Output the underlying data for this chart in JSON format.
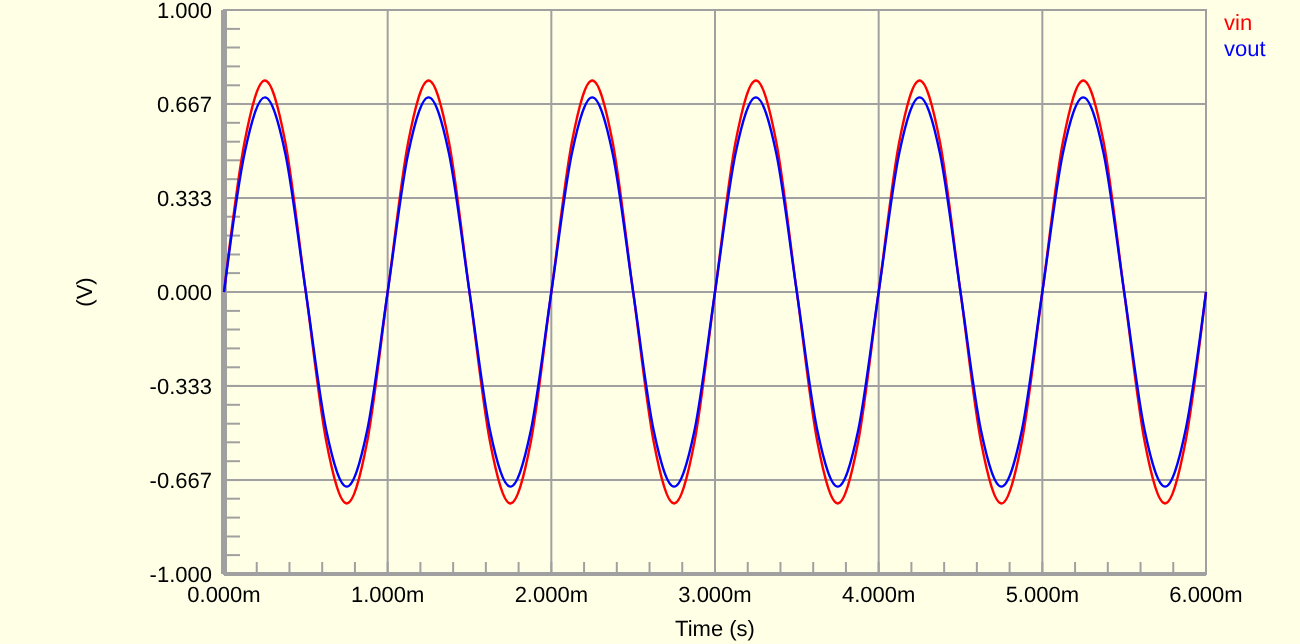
{
  "chart_data": {
    "type": "line",
    "xlabel": "Time (s)",
    "ylabel": "(V)",
    "xlim": [
      0,
      6
    ],
    "ylim": [
      -1,
      1
    ],
    "xticks": [
      {
        "value": 0,
        "label": "0.000m"
      },
      {
        "value": 0.2,
        "label": null
      },
      {
        "value": 0.4,
        "label": null
      },
      {
        "value": 0.6,
        "label": null
      },
      {
        "value": 0.8,
        "label": null
      },
      {
        "value": 1,
        "label": "1.000m"
      },
      {
        "value": 1.2,
        "label": null
      },
      {
        "value": 1.4,
        "label": null
      },
      {
        "value": 1.6,
        "label": null
      },
      {
        "value": 1.8,
        "label": null
      },
      {
        "value": 2,
        "label": "2.000m"
      },
      {
        "value": 2.2,
        "label": null
      },
      {
        "value": 2.4,
        "label": null
      },
      {
        "value": 2.6,
        "label": null
      },
      {
        "value": 2.8,
        "label": null
      },
      {
        "value": 3,
        "label": "3.000m"
      },
      {
        "value": 3.2,
        "label": null
      },
      {
        "value": 3.4,
        "label": null
      },
      {
        "value": 3.6,
        "label": null
      },
      {
        "value": 3.8,
        "label": null
      },
      {
        "value": 4,
        "label": "4.000m"
      },
      {
        "value": 4.2,
        "label": null
      },
      {
        "value": 4.4,
        "label": null
      },
      {
        "value": 4.6,
        "label": null
      },
      {
        "value": 4.8,
        "label": null
      },
      {
        "value": 5,
        "label": "5.000m"
      },
      {
        "value": 5.2,
        "label": null
      },
      {
        "value": 5.4,
        "label": null
      },
      {
        "value": 5.6,
        "label": null
      },
      {
        "value": 5.8,
        "label": null
      },
      {
        "value": 6,
        "label": "6.000m"
      }
    ],
    "yticks": [
      {
        "value": -1,
        "label": "-1.000"
      },
      {
        "value": -0.933,
        "label": null
      },
      {
        "value": -0.867,
        "label": null
      },
      {
        "value": -0.8,
        "label": null
      },
      {
        "value": -0.733,
        "label": null
      },
      {
        "value": -0.667,
        "label": "-0.667"
      },
      {
        "value": -0.6,
        "label": null
      },
      {
        "value": -0.533,
        "label": null
      },
      {
        "value": -0.467,
        "label": null
      },
      {
        "value": -0.4,
        "label": null
      },
      {
        "value": -0.333,
        "label": "-0.333"
      },
      {
        "value": -0.267,
        "label": null
      },
      {
        "value": -0.2,
        "label": null
      },
      {
        "value": -0.133,
        "label": null
      },
      {
        "value": -0.067,
        "label": null
      },
      {
        "value": 0,
        "label": "0.000"
      },
      {
        "value": 0.067,
        "label": null
      },
      {
        "value": 0.133,
        "label": null
      },
      {
        "value": 0.2,
        "label": null
      },
      {
        "value": 0.267,
        "label": null
      },
      {
        "value": 0.333,
        "label": "0.333"
      },
      {
        "value": 0.4,
        "label": null
      },
      {
        "value": 0.467,
        "label": null
      },
      {
        "value": 0.533,
        "label": null
      },
      {
        "value": 0.6,
        "label": null
      },
      {
        "value": 0.667,
        "label": "0.667"
      },
      {
        "value": 0.733,
        "label": null
      },
      {
        "value": 0.8,
        "label": null
      },
      {
        "value": 0.867,
        "label": null
      },
      {
        "value": 0.933,
        "label": null
      },
      {
        "value": 1,
        "label": "1.000"
      }
    ],
    "grid": true,
    "legend": "top right",
    "marker": "none",
    "line_style": "solid",
    "x": [
      0,
      0.125,
      0.25,
      0.375,
      0.5,
      0.625,
      0.75,
      0.875,
      1,
      1.125,
      1.25,
      1.375,
      1.5,
      1.625,
      1.75,
      1.875,
      2,
      2.125,
      2.25,
      2.375,
      2.5,
      2.625,
      2.75,
      2.875,
      3,
      3.125,
      3.25,
      3.375,
      3.5,
      3.625,
      3.75,
      3.875,
      4,
      4.125,
      4.25,
      4.375,
      4.5,
      4.625,
      4.75,
      4.875,
      5,
      5.125,
      5.25,
      5.375,
      5.5,
      5.625,
      5.75,
      5.875,
      6
    ],
    "series": [
      {
        "name": "vin",
        "color": "#ff0000",
        "values": [
          0,
          0.53,
          0.75,
          0.53,
          0,
          -0.53,
          -0.75,
          -0.53,
          0,
          0.53,
          0.75,
          0.53,
          0,
          -0.53,
          -0.75,
          -0.53,
          0,
          0.53,
          0.75,
          0.53,
          0,
          -0.53,
          -0.75,
          -0.53,
          0,
          0.53,
          0.75,
          0.53,
          0,
          -0.53,
          -0.75,
          -0.53,
          0,
          0.53,
          0.75,
          0.53,
          0,
          -0.53,
          -0.75,
          -0.53,
          0,
          0.53,
          0.75,
          0.53,
          0,
          -0.53,
          -0.75,
          -0.53,
          0
        ]
      },
      {
        "name": "vout",
        "color": "#0000ff",
        "values": [
          0,
          0.49,
          0.69,
          0.49,
          0,
          -0.49,
          -0.69,
          -0.49,
          0,
          0.49,
          0.69,
          0.49,
          0,
          -0.49,
          -0.69,
          -0.49,
          0,
          0.49,
          0.69,
          0.49,
          0,
          -0.49,
          -0.69,
          -0.49,
          0,
          0.49,
          0.69,
          0.49,
          0,
          -0.49,
          -0.69,
          -0.49,
          0,
          0.49,
          0.69,
          0.49,
          0,
          -0.49,
          -0.69,
          -0.49,
          0,
          0.49,
          0.69,
          0.49,
          0,
          -0.49,
          -0.69,
          -0.49,
          0
        ]
      }
    ]
  }
}
